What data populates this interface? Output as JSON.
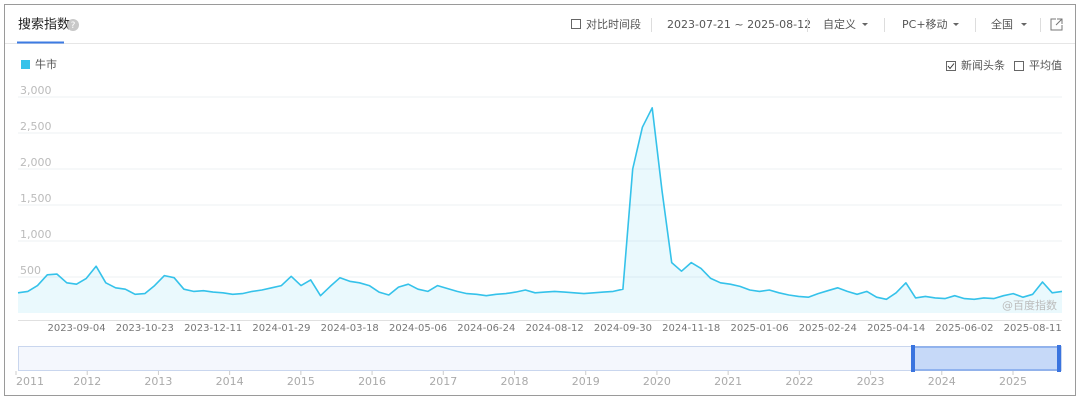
{
  "header": {
    "tab": "搜索指数",
    "compare": "对比时间段",
    "date_range": "2023-07-21 ~ 2025-08-12",
    "mode": "自定义",
    "device": "PC+移动",
    "region": "全国"
  },
  "options": {
    "news": "新闻头条",
    "average": "平均值"
  },
  "watermark": "@百度指数",
  "chart_data": {
    "type": "line",
    "categories": [
      null,
      null,
      null,
      null,
      null,
      null,
      "2023-09-04",
      null,
      null,
      null,
      null,
      null,
      null,
      "2023-10-23",
      null,
      null,
      null,
      null,
      null,
      null,
      "2023-12-11",
      null,
      null,
      null,
      null,
      null,
      null,
      "2024-01-29",
      null,
      null,
      null,
      null,
      null,
      null,
      "2024-03-18",
      null,
      null,
      null,
      null,
      null,
      null,
      "2024-05-06",
      null,
      null,
      null,
      null,
      null,
      null,
      "2024-06-24",
      null,
      null,
      null,
      null,
      null,
      null,
      "2024-08-12",
      null,
      null,
      null,
      null,
      null,
      null,
      "2024-09-30",
      null,
      null,
      null,
      null,
      null,
      null,
      "2024-11-18",
      null,
      null,
      null,
      null,
      null,
      null,
      "2025-01-06",
      null,
      null,
      null,
      null,
      null,
      null,
      "2025-02-24",
      null,
      null,
      null,
      null,
      null,
      null,
      "2025-04-14",
      null,
      null,
      null,
      null,
      null,
      null,
      "2025-06-02",
      null,
      null,
      null,
      null,
      null,
      null,
      "2025-08-11",
      null,
      null,
      null
    ],
    "series": [
      {
        "name": "牛市",
        "color": "#35c2ea",
        "values": [
          280,
          300,
          380,
          530,
          540,
          420,
          400,
          480,
          650,
          420,
          350,
          330,
          260,
          270,
          380,
          520,
          490,
          330,
          300,
          310,
          290,
          280,
          260,
          270,
          300,
          320,
          350,
          380,
          510,
          380,
          460,
          240,
          370,
          490,
          440,
          420,
          380,
          290,
          250,
          360,
          400,
          330,
          300,
          380,
          340,
          300,
          270,
          260,
          240,
          260,
          270,
          290,
          320,
          280,
          290,
          300,
          290,
          280,
          270,
          280,
          290,
          300,
          330,
          2000,
          2580,
          2850,
          1700,
          700,
          580,
          700,
          620,
          480,
          420,
          400,
          370,
          320,
          300,
          320,
          280,
          250,
          230,
          220,
          270,
          310,
          350,
          300,
          260,
          300,
          220,
          190,
          280,
          420,
          210,
          230,
          210,
          200,
          240,
          200,
          190,
          210,
          200,
          240,
          270,
          220,
          260,
          430,
          280,
          300
        ]
      }
    ],
    "ylim": [
      0,
      3000
    ],
    "yticks": [
      {
        "value": 500,
        "label": "500"
      },
      {
        "value": 1000,
        "label": "1,000"
      },
      {
        "value": 1500,
        "label": "1,500"
      },
      {
        "value": 2000,
        "label": "2,000"
      },
      {
        "value": 2500,
        "label": "2,500"
      },
      {
        "value": 3000,
        "label": "3,000"
      }
    ],
    "grid": true
  },
  "navigator": {
    "years": [
      2011,
      2012,
      2013,
      2014,
      2015,
      2016,
      2017,
      2018,
      2019,
      2020,
      2021,
      2022,
      2023,
      2024,
      2025
    ]
  }
}
